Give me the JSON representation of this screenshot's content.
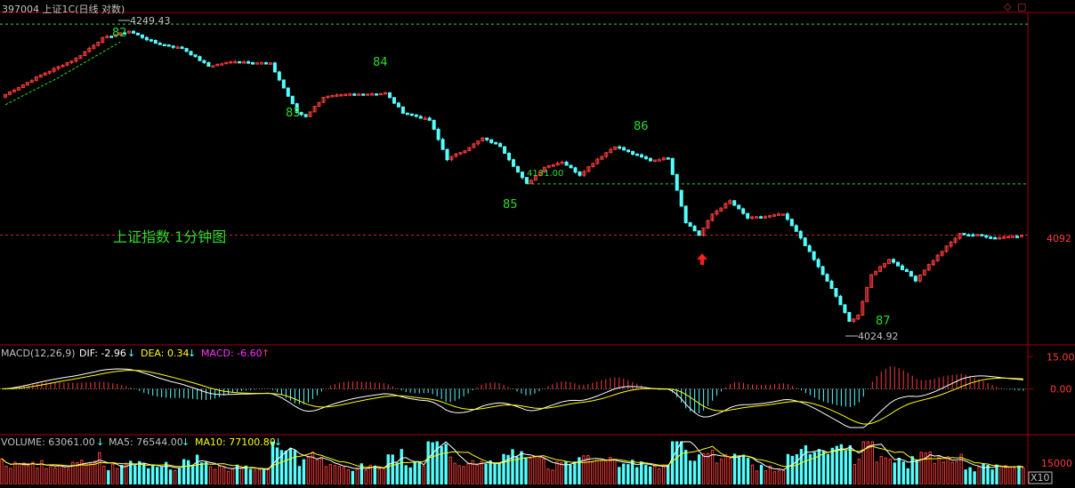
{
  "window": {
    "title": "397004 上证1C(日线 对数)",
    "controls": [
      "◇",
      "▢"
    ]
  },
  "colors": {
    "up": "#ff3c3c",
    "down": "#54ffff",
    "grid": "#a00000",
    "axis_text": "#ff3c3c",
    "annotation": "#2ddb2d",
    "dif": "#ffffff",
    "dea": "#ffff00",
    "macd": "#ff33ff"
  },
  "main_panel": {
    "annotation_label": "上证指数 1分钟图",
    "price_axis_label": "4092",
    "high_label": "4249.43",
    "low_label": "4024.92",
    "mid_label": "4131.00",
    "wave_labels": [
      "82",
      "83",
      "84",
      "85",
      "86",
      "87"
    ],
    "arrow_icon": "up-arrow-icon"
  },
  "macd_panel": {
    "title": "MACD(12,26,9)",
    "dif_label": "DIF: -2.96",
    "dea_label": "DEA: 0.34",
    "macd_label": "MACD: -6.60",
    "axis_labels": [
      "15.00",
      "0.00"
    ]
  },
  "volume_panel": {
    "volume_label": "VOLUME: 63061.00",
    "ma5_label": "MA5: 76544.00",
    "ma10_label": "MA10: 77100.80",
    "axis_label": "15000",
    "unit_label": "X10"
  },
  "chart_data": [
    {
      "type": "candlestick",
      "title": "上证指数 1分钟图",
      "ylim": [
        4015,
        4260
      ],
      "close_keypoints": [
        [
          0,
          4200
        ],
        [
          8,
          4215
        ],
        [
          16,
          4228
        ],
        [
          22,
          4244
        ],
        [
          28,
          4249.43
        ],
        [
          34,
          4240
        ],
        [
          40,
          4236
        ],
        [
          46,
          4222
        ],
        [
          52,
          4226
        ],
        [
          60,
          4224
        ],
        [
          66,
          4186
        ],
        [
          68,
          4183
        ],
        [
          72,
          4198
        ],
        [
          78,
          4200
        ],
        [
          86,
          4201
        ],
        [
          90,
          4186
        ],
        [
          96,
          4180
        ],
        [
          100,
          4150
        ],
        [
          104,
          4157
        ],
        [
          108,
          4166
        ],
        [
          112,
          4160
        ],
        [
          116,
          4140
        ],
        [
          118,
          4131
        ],
        [
          122,
          4144
        ],
        [
          126,
          4148
        ],
        [
          130,
          4138
        ],
        [
          134,
          4150
        ],
        [
          138,
          4160
        ],
        [
          142,
          4154
        ],
        [
          146,
          4149
        ],
        [
          150,
          4151
        ],
        [
          154,
          4102
        ],
        [
          157,
          4092
        ],
        [
          160,
          4108
        ],
        [
          164,
          4118
        ],
        [
          168,
          4105
        ],
        [
          172,
          4106
        ],
        [
          176,
          4108
        ],
        [
          180,
          4090
        ],
        [
          184,
          4068
        ],
        [
          188,
          4046
        ],
        [
          191,
          4027
        ],
        [
          193,
          4032
        ],
        [
          196,
          4062
        ],
        [
          200,
          4074
        ],
        [
          204,
          4064
        ],
        [
          206,
          4058
        ],
        [
          208,
          4066
        ],
        [
          212,
          4080
        ],
        [
          216,
          4093
        ],
        [
          220,
          4092
        ],
        [
          224,
          4090
        ],
        [
          230,
          4092
        ]
      ],
      "reference_lines": [
        4249.43,
        4131.0,
        4092
      ]
    },
    {
      "type": "line",
      "title": "MACD(12,26,9)",
      "series": [
        {
          "name": "DIF",
          "value": -2.96
        },
        {
          "name": "DEA",
          "value": 0.34
        },
        {
          "name": "MACD",
          "value": -6.6
        }
      ],
      "ylim": [
        -18,
        18
      ],
      "ticks": [
        15.0,
        0.0
      ]
    },
    {
      "type": "bar",
      "title": "VOLUME",
      "series": [
        {
          "name": "VOLUME",
          "value": 63061.0
        },
        {
          "name": "MA5",
          "value": 76544.0
        },
        {
          "name": "MA10",
          "value": 77100.8
        }
      ],
      "ticks": [
        15000
      ]
    }
  ]
}
